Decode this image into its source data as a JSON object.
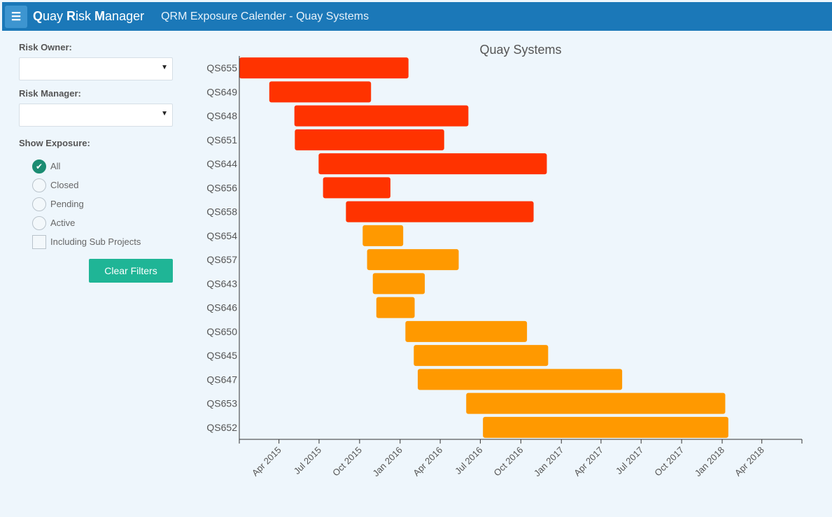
{
  "topbar": {
    "menu_icon": "☰",
    "app_name_parts": [
      {
        "bold": "Q",
        "rest": "uay "
      },
      {
        "bold": "R",
        "rest": "isk "
      },
      {
        "bold": "M",
        "rest": "anager"
      }
    ],
    "page_title": "QRM Exposure Calender - Quay Systems"
  },
  "filters": {
    "risk_owner_label": "Risk Owner:",
    "risk_owner_value": "",
    "risk_manager_label": "Risk Manager:",
    "risk_manager_value": "",
    "dropdown_arrow": "▼",
    "show_exposure_label": "Show Exposure:",
    "exposure_options": [
      "All",
      "Closed",
      "Pending",
      "Active"
    ],
    "selected_exposure": "All",
    "check_mark": "✔",
    "sub_projects_label": "Including Sub Projects",
    "clear_filters_label": "Clear Filters"
  },
  "chart_data": {
    "type": "gantt",
    "title": "Quay Systems",
    "x_range": [
      "2015-01-01",
      "2018-07-01"
    ],
    "x_ticks": [
      "Apr 2015",
      "Jul 2015",
      "Oct 2015",
      "Jan 2016",
      "Apr 2016",
      "Jul 2016",
      "Oct 2016",
      "Jan 2017",
      "Apr 2017",
      "Jul 2017",
      "Oct 2017",
      "Jan 2018",
      "Apr 2018"
    ],
    "x_tick_dates": [
      "2015-04-01",
      "2015-07-01",
      "2015-10-01",
      "2016-01-01",
      "2016-04-01",
      "2016-07-01",
      "2016-10-01",
      "2017-01-01",
      "2017-04-01",
      "2017-07-01",
      "2017-10-01",
      "2018-01-01",
      "2018-04-01"
    ],
    "colors": {
      "red": "#ff3300",
      "orange": "#ff9900"
    },
    "tasks": [
      {
        "name": "QS655",
        "start": "2015-01-01",
        "end": "2016-01-20",
        "color": "red"
      },
      {
        "name": "QS649",
        "start": "2015-03-10",
        "end": "2015-10-27",
        "color": "red"
      },
      {
        "name": "QS648",
        "start": "2015-05-06",
        "end": "2016-06-04",
        "color": "red"
      },
      {
        "name": "QS651",
        "start": "2015-05-07",
        "end": "2016-04-10",
        "color": "red"
      },
      {
        "name": "QS644",
        "start": "2015-06-30",
        "end": "2016-11-29",
        "color": "red"
      },
      {
        "name": "QS656",
        "start": "2015-07-10",
        "end": "2015-12-10",
        "color": "red"
      },
      {
        "name": "QS658",
        "start": "2015-08-31",
        "end": "2016-10-30",
        "color": "red"
      },
      {
        "name": "QS654",
        "start": "2015-10-08",
        "end": "2016-01-08",
        "color": "orange"
      },
      {
        "name": "QS657",
        "start": "2015-10-18",
        "end": "2016-05-13",
        "color": "orange"
      },
      {
        "name": "QS643",
        "start": "2015-10-31",
        "end": "2016-02-26",
        "color": "orange"
      },
      {
        "name": "QS646",
        "start": "2015-11-08",
        "end": "2016-02-03",
        "color": "orange"
      },
      {
        "name": "QS650",
        "start": "2016-01-13",
        "end": "2016-10-15",
        "color": "orange"
      },
      {
        "name": "QS645",
        "start": "2016-02-01",
        "end": "2016-12-02",
        "color": "orange"
      },
      {
        "name": "QS647",
        "start": "2016-02-10",
        "end": "2017-05-19",
        "color": "orange"
      },
      {
        "name": "QS653",
        "start": "2016-05-30",
        "end": "2018-01-08",
        "color": "orange"
      },
      {
        "name": "QS652",
        "start": "2016-07-07",
        "end": "2018-01-15",
        "color": "orange"
      }
    ]
  }
}
